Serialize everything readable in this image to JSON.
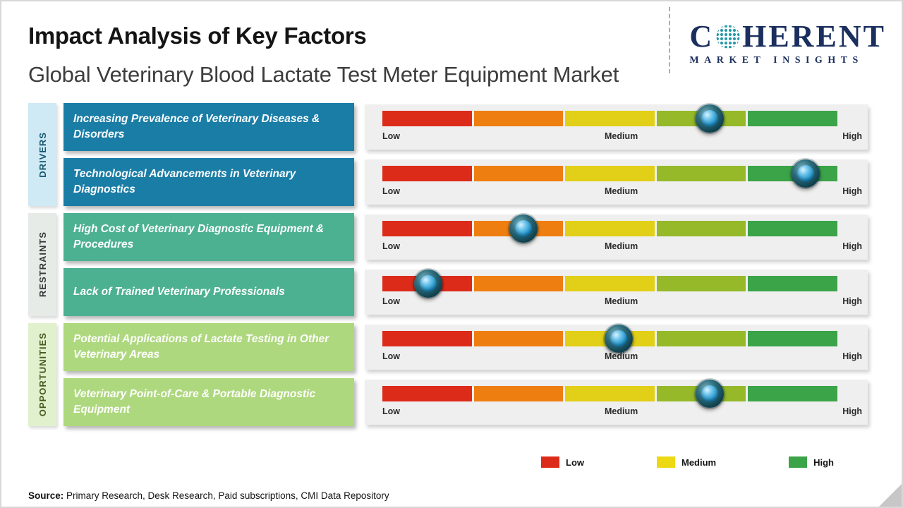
{
  "header": {
    "title": "Impact Analysis of Key Factors",
    "subtitle": "Global Veterinary Blood Lactate Test Meter Equipment Market"
  },
  "logo": {
    "part1": "C",
    "part2": "HERENT",
    "subtitle": "MARKET INSIGHTS",
    "brand_navy": "#1b2f5e",
    "brand_teal": "#2a9aa8"
  },
  "chart_data": {
    "type": "scatter",
    "subtype": "impact-scale",
    "title": "Impact Analysis of Key Factors",
    "subtitle": "Global Veterinary Blood Lactate Test Meter Equipment Market",
    "scale_labels": [
      "Low",
      "Medium",
      "High"
    ],
    "scale_range_pct": [
      0,
      100
    ],
    "segment_colors": [
      "#dd2b1a",
      "#ef7e11",
      "#e2cf17",
      "#95b929",
      "#3ba348"
    ],
    "groups": [
      {
        "name": "DRIVERS",
        "box_color": "#1a7da6",
        "strip_color": "#cfe9f5",
        "label_color": "#14586f",
        "factors": [
          {
            "label": "Increasing Prevalence of Veterinary Diseases & Disorders",
            "impact_pct": 72,
            "impact_level": "Medium-High"
          },
          {
            "label": "Technological Advancements in Veterinary Diagnostics",
            "impact_pct": 93,
            "impact_level": "High"
          }
        ]
      },
      {
        "name": "RESTRAINTS",
        "box_color": "#4cb190",
        "strip_color": "#e6ebe7",
        "label_color": "#33393b",
        "factors": [
          {
            "label": "High Cost of Veterinary Diagnostic Equipment & Procedures",
            "impact_pct": 31,
            "impact_level": "Low-Medium"
          },
          {
            "label": "Lack of Trained Veterinary Professionals",
            "impact_pct": 10,
            "impact_level": "Low"
          }
        ]
      },
      {
        "name": "OPPORTUNITIES",
        "box_color": "#aed87e",
        "strip_color": "#e1f1cd",
        "label_color": "#455a21",
        "factors": [
          {
            "label": "Potential Applications of Lactate Testing in Other Veterinary Areas",
            "impact_pct": 52,
            "impact_level": "Medium"
          },
          {
            "label": "Veterinary Point-of-Care & Portable Diagnostic Equipment",
            "impact_pct": 72,
            "impact_level": "Medium-High"
          }
        ]
      }
    ]
  },
  "legend": {
    "items": [
      {
        "label": "Low",
        "color": "#dd2b1a"
      },
      {
        "label": "Medium",
        "color": "#ecd913"
      },
      {
        "label": "High",
        "color": "#3ba348"
      }
    ]
  },
  "source": {
    "prefix": "Source:",
    "text": " Primary Research, Desk Research, Paid subscriptions, CMI Data Repository"
  }
}
